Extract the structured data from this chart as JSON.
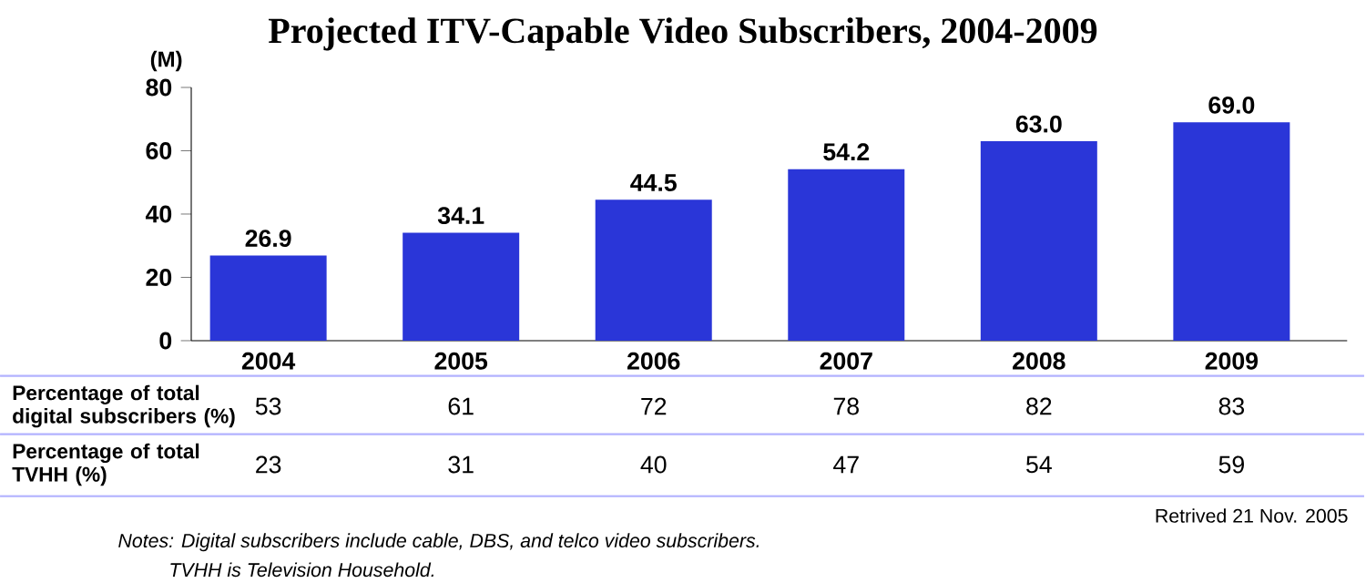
{
  "chart_data": {
    "type": "bar",
    "title": "Projected ITV-Capable Video Subscribers, 2004-2009",
    "ylabel": "(M)",
    "categories": [
      "2004",
      "2005",
      "2006",
      "2007",
      "2008",
      "2009"
    ],
    "values": [
      26.9,
      34.1,
      44.5,
      54.2,
      63.0,
      69.0
    ],
    "value_labels": [
      "26.9",
      "34.1",
      "44.5",
      "54.2",
      "63.0",
      "69.0"
    ],
    "color": "#2a36d8",
    "ylim": [
      0,
      80
    ],
    "yticks": [
      0,
      20,
      40,
      60,
      80
    ],
    "grid": false,
    "annotations": [
      "Percentage of total digital subscribers (%)",
      "53",
      "61",
      "72",
      "78",
      "82",
      "83",
      "Percentage of total TVHH (%)",
      "23",
      "31",
      "40",
      "47",
      "54",
      "59",
      "Retrived 21 Nov. 2005",
      "Notes: Digital subscribers include cable, DBS, and telco video subscribers.",
      "TVHH is Television Household."
    ]
  }
}
